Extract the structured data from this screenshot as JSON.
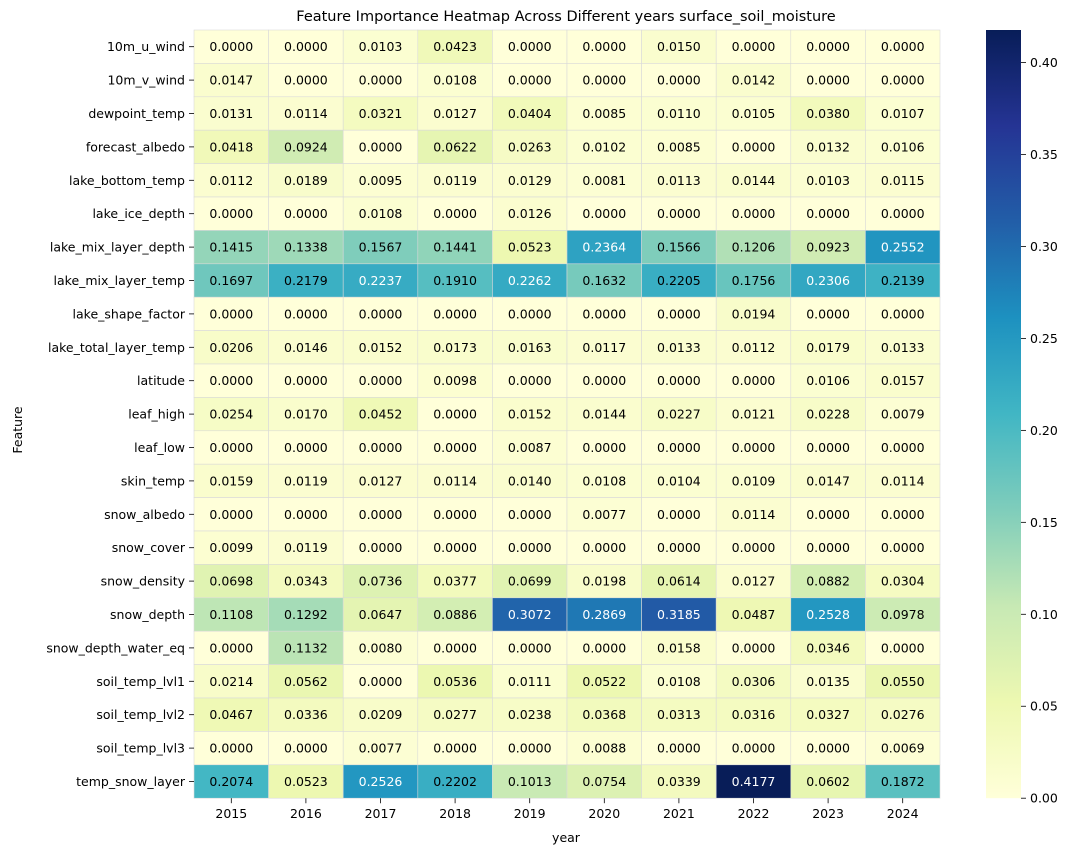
{
  "chart_data": {
    "type": "heatmap",
    "title": "Feature Importance Heatmap Across Different years surface_soil_moisture",
    "xlabel": "year",
    "ylabel": "Feature",
    "x": [
      "2015",
      "2016",
      "2017",
      "2018",
      "2019",
      "2020",
      "2021",
      "2022",
      "2023",
      "2024"
    ],
    "y": [
      "10m_u_wind",
      "10m_v_wind",
      "dewpoint_temp",
      "forecast_albedo",
      "lake_bottom_temp",
      "lake_ice_depth",
      "lake_mix_layer_depth",
      "lake_mix_layer_temp",
      "lake_shape_factor",
      "lake_total_layer_temp",
      "latitude",
      "leaf_high",
      "leaf_low",
      "skin_temp",
      "snow_albedo",
      "snow_cover",
      "snow_density",
      "snow_depth",
      "snow_depth_water_eq",
      "soil_temp_lvl1",
      "soil_temp_lvl2",
      "soil_temp_lvl3",
      "temp_snow_layer"
    ],
    "values": [
      [
        0.0,
        0.0,
        0.0103,
        0.0423,
        0.0,
        0.0,
        0.015,
        0.0,
        0.0,
        0.0
      ],
      [
        0.0147,
        0.0,
        0.0,
        0.0108,
        0.0,
        0.0,
        0.0,
        0.0142,
        0.0,
        0.0
      ],
      [
        0.0131,
        0.0114,
        0.0321,
        0.0127,
        0.0404,
        0.0085,
        0.011,
        0.0105,
        0.038,
        0.0107
      ],
      [
        0.0418,
        0.0924,
        0.0,
        0.0622,
        0.0263,
        0.0102,
        0.0085,
        0.0,
        0.0132,
        0.0106
      ],
      [
        0.0112,
        0.0189,
        0.0095,
        0.0119,
        0.0129,
        0.0081,
        0.0113,
        0.0144,
        0.0103,
        0.0115
      ],
      [
        0.0,
        0.0,
        0.0108,
        0.0,
        0.0126,
        0.0,
        0.0,
        0.0,
        0.0,
        0.0
      ],
      [
        0.1415,
        0.1338,
        0.1567,
        0.1441,
        0.0523,
        0.2364,
        0.1566,
        0.1206,
        0.0923,
        0.2552
      ],
      [
        0.1697,
        0.2179,
        0.2237,
        0.191,
        0.2262,
        0.1632,
        0.2205,
        0.1756,
        0.2306,
        0.2139
      ],
      [
        0.0,
        0.0,
        0.0,
        0.0,
        0.0,
        0.0,
        0.0,
        0.0194,
        0.0,
        0.0
      ],
      [
        0.0206,
        0.0146,
        0.0152,
        0.0173,
        0.0163,
        0.0117,
        0.0133,
        0.0112,
        0.0179,
        0.0133
      ],
      [
        0.0,
        0.0,
        0.0,
        0.0098,
        0.0,
        0.0,
        0.0,
        0.0,
        0.0106,
        0.0157
      ],
      [
        0.0254,
        0.017,
        0.0452,
        0.0,
        0.0152,
        0.0144,
        0.0227,
        0.0121,
        0.0228,
        0.0079
      ],
      [
        0.0,
        0.0,
        0.0,
        0.0,
        0.0087,
        0.0,
        0.0,
        0.0,
        0.0,
        0.0
      ],
      [
        0.0159,
        0.0119,
        0.0127,
        0.0114,
        0.014,
        0.0108,
        0.0104,
        0.0109,
        0.0147,
        0.0114
      ],
      [
        0.0,
        0.0,
        0.0,
        0.0,
        0.0,
        0.0077,
        0.0,
        0.0114,
        0.0,
        0.0
      ],
      [
        0.0099,
        0.0119,
        0.0,
        0.0,
        0.0,
        0.0,
        0.0,
        0.0,
        0.0,
        0.0
      ],
      [
        0.0698,
        0.0343,
        0.0736,
        0.0377,
        0.0699,
        0.0198,
        0.0614,
        0.0127,
        0.0882,
        0.0304
      ],
      [
        0.1108,
        0.1292,
        0.0647,
        0.0886,
        0.3072,
        0.2869,
        0.3185,
        0.0487,
        0.2528,
        0.0978
      ],
      [
        0.0,
        0.1132,
        0.008,
        0.0,
        0.0,
        0.0,
        0.0158,
        0.0,
        0.0346,
        0.0
      ],
      [
        0.0214,
        0.0562,
        0.0,
        0.0536,
        0.0111,
        0.0522,
        0.0108,
        0.0306,
        0.0135,
        0.055
      ],
      [
        0.0467,
        0.0336,
        0.0209,
        0.0277,
        0.0238,
        0.0368,
        0.0313,
        0.0316,
        0.0327,
        0.0276
      ],
      [
        0.0,
        0.0,
        0.0077,
        0.0,
        0.0,
        0.0088,
        0.0,
        0.0,
        0.0,
        0.0069
      ],
      [
        0.2074,
        0.0523,
        0.2526,
        0.2202,
        0.1013,
        0.0754,
        0.0339,
        0.4177,
        0.0602,
        0.1872
      ]
    ],
    "colormap": "YlGnBu",
    "colorbar": {
      "range": [
        0.0,
        0.4177
      ],
      "ticks": [
        0.0,
        0.05,
        0.1,
        0.15,
        0.2,
        0.25,
        0.3,
        0.35,
        0.4
      ],
      "tick_labels": [
        "0.00",
        "0.05",
        "0.10",
        "0.15",
        "0.20",
        "0.25",
        "0.30",
        "0.35",
        "0.40"
      ]
    },
    "cell_label_format": "4 decimals",
    "grid": false
  },
  "colors": {
    "ylgnbu": [
      "#ffffd9",
      "#edf8b1",
      "#c7e9b4",
      "#7fcdbb",
      "#41b6c4",
      "#1d91c0",
      "#225ea8",
      "#253494",
      "#081d58"
    ],
    "cell_border": "#d9d9d9",
    "text_dark": "#000000",
    "text_light": "#ffffff"
  }
}
